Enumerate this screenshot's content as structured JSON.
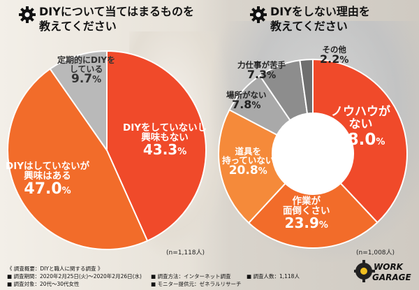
{
  "left_chart": {
    "title_line1": "DIYについて当てはまるものを",
    "title_line2": "教えてください",
    "n": "(n=1,118人)"
  },
  "right_chart": {
    "title_line1": "DIYをしない理由を",
    "title_line2": "教えてください",
    "n": "(n=1,008人)"
  },
  "chart_data": [
    {
      "type": "pie",
      "title": "DIYについて当てはまるものを教えてください",
      "slices": [
        {
          "label_line1": "DIYをしていないし",
          "label_line2": "興味もない",
          "value": 43.3,
          "value_text": "43.3",
          "unit": "%",
          "color": "#f04a2a"
        },
        {
          "label_line1": "DIYはしていないが",
          "label_line2": "興味はある",
          "value": 47.0,
          "value_text": "47.0",
          "unit": "%",
          "color": "#f26c2a"
        },
        {
          "label_line1": "定期的にDIYを",
          "label_line2": "している",
          "value": 9.7,
          "value_text": "9.7",
          "unit": "%",
          "color": "#b9b9b9"
        }
      ]
    },
    {
      "type": "pie",
      "title": "DIYをしない理由を教えてください",
      "donut": true,
      "slices": [
        {
          "label_line1": "ノウハウが",
          "label_line2": "ない",
          "value": 38.0,
          "value_text": "38.0",
          "unit": "%",
          "color": "#f04a2a"
        },
        {
          "label_line1": "作業が",
          "label_line2": "面倒くさい",
          "value": 23.9,
          "value_text": "23.9",
          "unit": "%",
          "color": "#f26c2a"
        },
        {
          "label_line1": "道具を",
          "label_line2": "持っていない",
          "value": 20.8,
          "value_text": "20.8",
          "unit": "%",
          "color": "#f58a3a"
        },
        {
          "label_line1": "場所がない",
          "label_line2": "",
          "value": 7.8,
          "value_text": "7.8",
          "unit": "%",
          "color": "#a9a9a9"
        },
        {
          "label_line1": "力仕事が苦手",
          "label_line2": "",
          "value": 7.3,
          "value_text": "7.3",
          "unit": "%",
          "color": "#8d8d8d"
        },
        {
          "label_line1": "その他",
          "label_line2": "",
          "value": 2.2,
          "value_text": "2.2",
          "unit": "%",
          "color": "#6f6f6f"
        }
      ]
    }
  ],
  "footer": {
    "heading": "《 調査概要：DIYと職人に関する調査 》",
    "period": "■ 調査期間：2020年2月25日(火)～2020年2月26日(水)",
    "method": "■ 調査方法：インターネット調査",
    "people": "■ 調査人数：1,118人",
    "target": "■ 調査対象：20代～30代女性",
    "provider": "■ モニター提供元：ゼネラルリサーチ"
  },
  "logo": {
    "line1": "WORK",
    "line2": "GARAGE"
  },
  "colors": {
    "accent": "#f04a2a",
    "text_orange": "#f05a1e"
  }
}
